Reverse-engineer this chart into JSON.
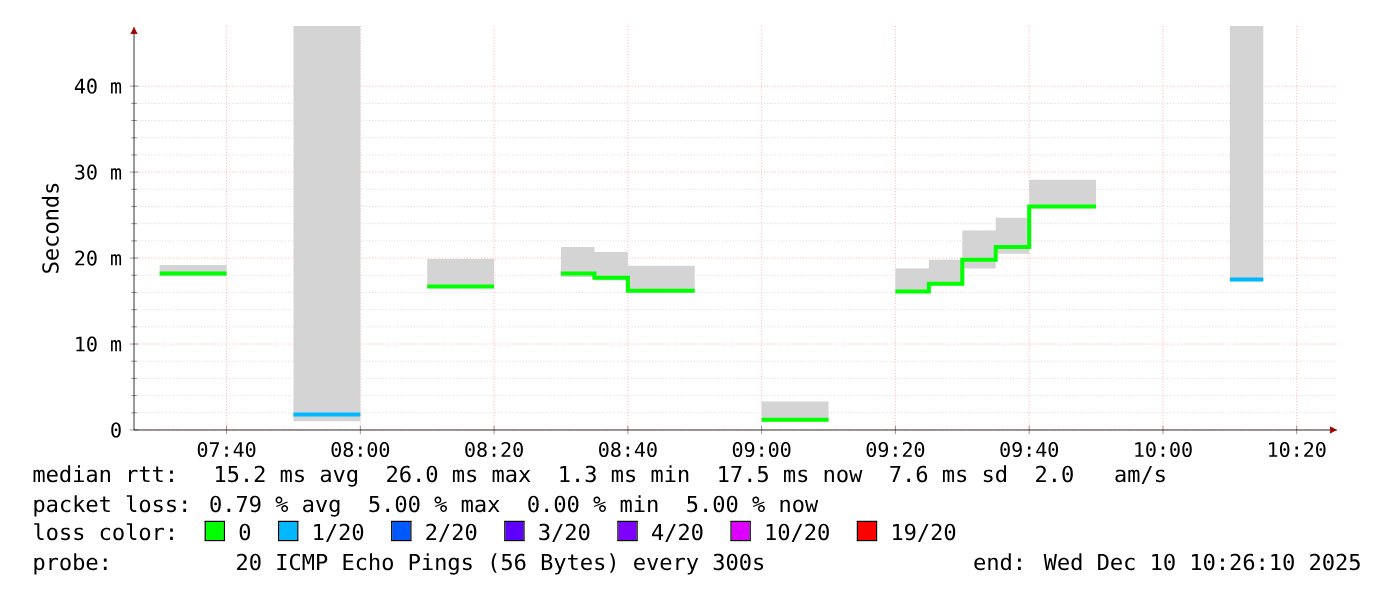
{
  "chart_data": {
    "type": "step",
    "ylabel": "Seconds",
    "x": [
      7.5,
      7.5833,
      7.6667,
      7.75,
      7.8333,
      7.9167,
      8,
      8.0833,
      8.1667,
      8.25,
      8.3333,
      8.4167,
      8.5,
      8.5833,
      8.6667,
      8.75,
      8.8333,
      8.9167,
      9,
      9.0833,
      9.1667,
      9.25,
      9.3333,
      9.4167,
      9.5,
      9.5833,
      9.6667,
      9.75,
      9.8333,
      9.9167,
      10,
      10.0833,
      10.1667,
      10.25
    ],
    "xlim": [
      7.4361,
      10.4361
    ],
    "xticks": [
      {
        "value": 7.6667,
        "label": "07:40"
      },
      {
        "value": 8,
        "label": "08:00"
      },
      {
        "value": 8.3333,
        "label": "08:20"
      },
      {
        "value": 8.6667,
        "label": "08:40"
      },
      {
        "value": 9,
        "label": "09:00"
      },
      {
        "value": 9.3333,
        "label": "09:20"
      },
      {
        "value": 9.6667,
        "label": "09:40"
      },
      {
        "value": 10,
        "label": "10:00"
      },
      {
        "value": 10.3333,
        "label": "10:20"
      }
    ],
    "ylim": [
      0,
      47
    ],
    "yticks": [
      0,
      {
        "value": 10,
        "label": "10 m"
      },
      {
        "value": 20,
        "label": "20 m"
      },
      {
        "value": 30,
        "label": "30 m"
      },
      {
        "value": 40,
        "label": "40 m"
      }
    ],
    "grid": true,
    "legend": "bottom",
    "legend_title": "loss color:",
    "series": [
      {
        "name": "0",
        "color": "#00ff00",
        "values": [
          18.2,
          18.2,
          18.2,
          null,
          null,
          null,
          null,
          null,
          16.7,
          16.7,
          16.7,
          null,
          18.2,
          17.7,
          16.2,
          16.2,
          16.2,
          null,
          1.2,
          1.2,
          1.2,
          null,
          16.1,
          17.0,
          19.8,
          21.3,
          26.0,
          26.0,
          26.0,
          null,
          null,
          null,
          null,
          null
        ],
        "upper": [
          19.2,
          19.2,
          19.2,
          null,
          null,
          null,
          null,
          null,
          19.9,
          19.9,
          19.9,
          null,
          21.3,
          20.7,
          19.1,
          19.1,
          19.1,
          null,
          3.3,
          3.3,
          3.3,
          null,
          18.8,
          19.8,
          23.2,
          24.7,
          29.1,
          29.1,
          29.1,
          null,
          null,
          null,
          null,
          null
        ],
        "lower": [
          17.9,
          17.9,
          17.9,
          null,
          null,
          null,
          null,
          null,
          16.5,
          16.5,
          16.5,
          null,
          17.8,
          17.4,
          16.0,
          16.0,
          16.0,
          null,
          1.0,
          1.0,
          1.0,
          null,
          16.0,
          16.8,
          18.8,
          20.5,
          25.8,
          25.8,
          25.8,
          null,
          null,
          null,
          null,
          null
        ]
      },
      {
        "name": "1/20",
        "color": "#00b8ff",
        "values": [
          null,
          null,
          null,
          null,
          1.8,
          1.8,
          1.8,
          null,
          null,
          null,
          null,
          null,
          null,
          null,
          null,
          null,
          null,
          null,
          null,
          null,
          null,
          null,
          null,
          null,
          null,
          null,
          null,
          null,
          null,
          null,
          null,
          null,
          17.5,
          17.5
        ],
        "upper": [
          null,
          null,
          null,
          null,
          47,
          47,
          47,
          null,
          null,
          null,
          null,
          null,
          null,
          null,
          null,
          null,
          null,
          null,
          null,
          null,
          null,
          null,
          null,
          null,
          null,
          null,
          null,
          null,
          null,
          null,
          null,
          null,
          47,
          47
        ],
        "lower": [
          null,
          null,
          null,
          null,
          1.0,
          1.0,
          1.0,
          null,
          null,
          null,
          null,
          null,
          null,
          null,
          null,
          null,
          null,
          null,
          null,
          null,
          null,
          null,
          null,
          null,
          null,
          null,
          null,
          null,
          null,
          null,
          null,
          null,
          17.3,
          17.3
        ]
      },
      {
        "name": "2/20",
        "color": "#0059ff",
        "values": [
          null,
          null,
          null,
          null,
          null,
          null,
          null,
          null,
          null,
          null,
          null,
          null,
          null,
          null,
          null,
          null,
          null,
          null,
          null,
          null,
          null,
          null,
          null,
          null,
          null,
          null,
          null,
          null,
          null,
          null,
          null,
          null,
          null,
          null
        ]
      },
      {
        "name": "3/20",
        "color": "#5e00ff",
        "values": [
          null,
          null,
          null,
          null,
          null,
          null,
          null,
          null,
          null,
          null,
          null,
          null,
          null,
          null,
          null,
          null,
          null,
          null,
          null,
          null,
          null,
          null,
          null,
          null,
          null,
          null,
          null,
          null,
          null,
          null,
          null,
          null,
          null,
          null
        ]
      },
      {
        "name": "4/20",
        "color": "#7e00ff",
        "values": [
          null,
          null,
          null,
          null,
          null,
          null,
          null,
          null,
          null,
          null,
          null,
          null,
          null,
          null,
          null,
          null,
          null,
          null,
          null,
          null,
          null,
          null,
          null,
          null,
          null,
          null,
          null,
          null,
          null,
          null,
          null,
          null,
          null,
          null
        ]
      },
      {
        "name": "10/20",
        "color": "#dd00ff",
        "values": [
          null,
          null,
          null,
          null,
          null,
          null,
          null,
          null,
          null,
          null,
          null,
          null,
          null,
          null,
          null,
          null,
          null,
          null,
          null,
          null,
          null,
          null,
          null,
          null,
          null,
          null,
          null,
          null,
          null,
          null,
          null,
          null,
          null,
          null
        ]
      },
      {
        "name": "19/20",
        "color": "#ff0000",
        "values": [
          null,
          null,
          null,
          null,
          null,
          null,
          null,
          null,
          null,
          null,
          null,
          null,
          null,
          null,
          null,
          null,
          null,
          null,
          null,
          null,
          null,
          null,
          null,
          null,
          null,
          null,
          null,
          null,
          null,
          null,
          null,
          null,
          null,
          null
        ]
      }
    ],
    "annotations": [
      "median rtt:  15.2 ms avg  26.0 ms max  1.3 ms min  17.5 ms now  7.6 ms sd  2.0   am/s",
      "packet loss: 0.79 % avg  5.00 % max  0.00 % min  5.00 % now",
      "probe:       20 ICMP Echo Pings (56 Bytes) every 300s",
      "end: Wed Dec 10 10:26:10 2025"
    ]
  }
}
